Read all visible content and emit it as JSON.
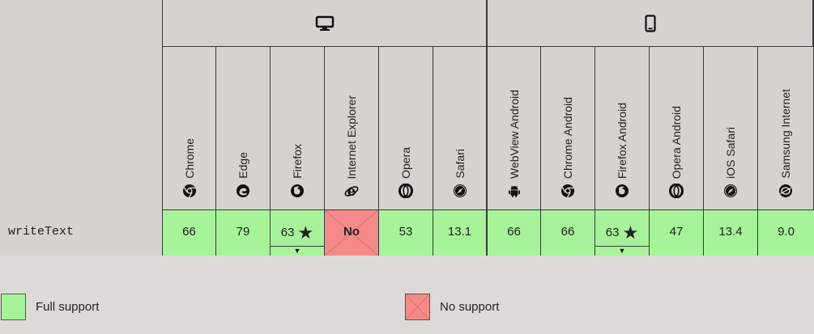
{
  "platforms": [
    {
      "name": "desktop",
      "icon": "desktop-icon"
    },
    {
      "name": "mobile",
      "icon": "mobile-icon"
    }
  ],
  "browsers": [
    {
      "name": "Chrome",
      "icon": "chrome-icon"
    },
    {
      "name": "Edge",
      "icon": "edge-icon"
    },
    {
      "name": "Firefox",
      "icon": "firefox-icon"
    },
    {
      "name": "Internet Explorer",
      "icon": "ie-icon"
    },
    {
      "name": "Opera",
      "icon": "opera-icon"
    },
    {
      "name": "Safari",
      "icon": "safari-icon"
    },
    {
      "name": "WebView Android",
      "icon": "android-icon"
    },
    {
      "name": "Chrome Android",
      "icon": "chrome-icon"
    },
    {
      "name": "Firefox Android",
      "icon": "firefox-icon"
    },
    {
      "name": "Opera Android",
      "icon": "opera-icon"
    },
    {
      "name": "iOS Safari",
      "icon": "safari-icon"
    },
    {
      "name": "Samsung Internet",
      "icon": "samsung-internet-icon"
    }
  ],
  "feature": {
    "name": "writeText",
    "support": [
      "66",
      "79",
      "63",
      "No",
      "53",
      "13.1",
      "66",
      "66",
      "63",
      "47",
      "13.4",
      "9.0"
    ]
  },
  "legend": {
    "full": "Full support",
    "none": "No support"
  },
  "colors": {
    "full_support": "#a6f39a",
    "no_support": "#f48a8a",
    "header_bg": "#d6d3ce",
    "page_bg": "#dcdad6"
  }
}
